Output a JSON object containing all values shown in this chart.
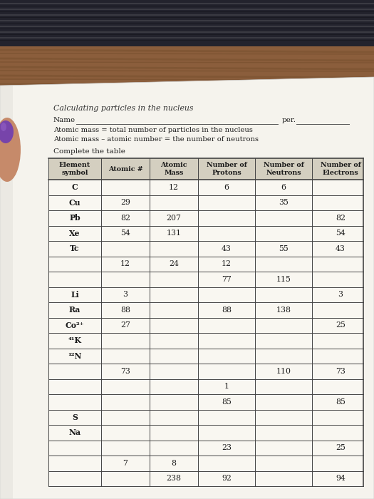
{
  "title": "Calculating particles in the nucleus",
  "name_line": "Name _________________________________________________ per. ______",
  "line2": "Atomic mass = total number of particles in the nucleus",
  "line3": "Atomic mass – atomic number = the number of neutrons",
  "line4": "Complete the table",
  "headers": [
    "Element\nsymbol",
    "Atomic #",
    "Atomic\nMass",
    "Number of\nProtons",
    "Number of\nNeutrons",
    "Number of\nElectrons"
  ],
  "rows": [
    [
      "C",
      "",
      "12",
      "6",
      "6",
      ""
    ],
    [
      "Cu",
      "29",
      "",
      "",
      "35",
      ""
    ],
    [
      "Pb",
      "82",
      "207",
      "",
      "",
      "82"
    ],
    [
      "Xe",
      "54",
      "131",
      "",
      "",
      "54"
    ],
    [
      "Tc",
      "",
      "",
      "43",
      "55",
      "43"
    ],
    [
      "",
      "12",
      "24",
      "12",
      "",
      ""
    ],
    [
      "",
      "",
      "",
      "77",
      "115",
      ""
    ],
    [
      "Li",
      "3",
      "",
      "",
      "",
      "3"
    ],
    [
      "Ra",
      "88",
      "",
      "88",
      "138",
      ""
    ],
    [
      "Co²⁺",
      "27",
      "",
      "",
      "",
      "25"
    ],
    [
      "⁴¹K",
      "",
      "",
      "",
      "",
      ""
    ],
    [
      "¹²N",
      "",
      "",
      "",
      "",
      ""
    ],
    [
      "",
      "73",
      "",
      "",
      "110",
      "73"
    ],
    [
      "",
      "",
      "",
      "1",
      "",
      ""
    ],
    [
      "",
      "",
      "",
      "85",
      "",
      "85"
    ],
    [
      "S",
      "",
      "",
      "",
      "",
      ""
    ],
    [
      "Na",
      "",
      "",
      "",
      "",
      ""
    ],
    [
      "",
      "",
      "",
      "23",
      "",
      "25"
    ],
    [
      "",
      "7",
      "8",
      "",
      "",
      ""
    ],
    [
      "",
      "",
      "238",
      "92",
      "",
      "94"
    ]
  ],
  "dark_bg_color": "#2a2a35",
  "wood_color": "#7a4f30",
  "paper_color": "#f8f6f0",
  "header_bg": "#c8c4b4",
  "table_line_color": "#555555",
  "text_color": "#1a1a1a",
  "finger_color": "#8855aa"
}
